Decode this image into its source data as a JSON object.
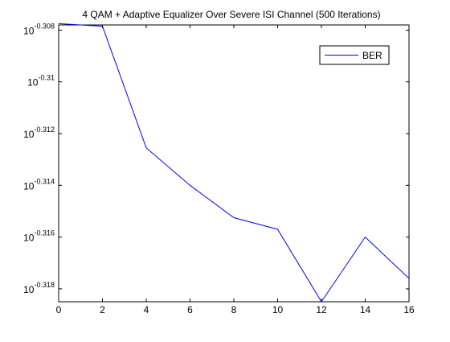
{
  "chart_data": {
    "type": "line",
    "title": "4 QAM + Adaptive Equalizer Over Severe ISI Channel (500 Iterations)",
    "xlabel": "",
    "ylabel": "",
    "xlim": [
      0,
      16
    ],
    "ylim_log10": [
      -0.3185,
      -0.3078
    ],
    "y_scale": "log10",
    "grid": false,
    "legend_position": "top-right",
    "x_ticks": [
      0,
      2,
      4,
      6,
      8,
      10,
      12,
      14,
      16
    ],
    "y_ticks": [
      {
        "base": "10",
        "exponent": "-0.308",
        "log10_value": -0.308
      },
      {
        "base": "10",
        "exponent": "-0.31",
        "log10_value": -0.31
      },
      {
        "base": "10",
        "exponent": "-0.312",
        "log10_value": -0.312
      },
      {
        "base": "10",
        "exponent": "-0.314",
        "log10_value": -0.314
      },
      {
        "base": "10",
        "exponent": "-0.316",
        "log10_value": -0.316
      },
      {
        "base": "10",
        "exponent": "-0.318",
        "log10_value": -0.318
      }
    ],
    "series": [
      {
        "name": "BER",
        "color": "#0000ff",
        "x": [
          0,
          2,
          4,
          6,
          8,
          10,
          12,
          14,
          16
        ],
        "log10_y": [
          -0.30775,
          -0.30785,
          -0.31255,
          -0.314,
          -0.31525,
          -0.3157,
          -0.3185,
          -0.316,
          -0.3176
        ]
      }
    ]
  }
}
